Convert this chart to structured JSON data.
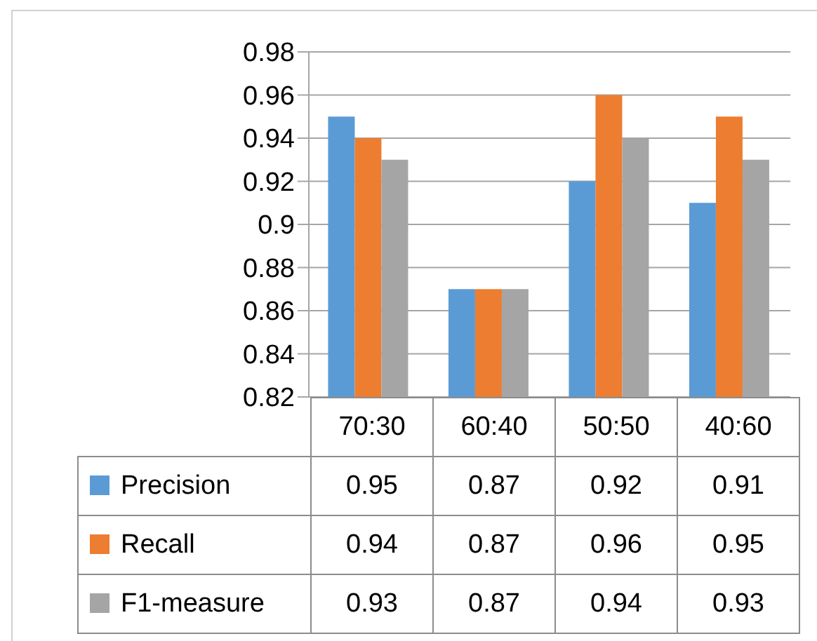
{
  "chart_data": {
    "type": "bar",
    "categories": [
      "70:30",
      "60:40",
      "50:50",
      "40:60"
    ],
    "series": [
      {
        "name": "Precision",
        "color": "#5b9bd5",
        "values": [
          0.95,
          0.87,
          0.92,
          0.91
        ]
      },
      {
        "name": "Recall",
        "color": "#ed7d31",
        "values": [
          0.94,
          0.87,
          0.96,
          0.95
        ]
      },
      {
        "name": "F1-measure",
        "color": "#a5a5a5",
        "values": [
          0.93,
          0.87,
          0.94,
          0.93
        ]
      }
    ],
    "ylim": [
      0.82,
      0.98
    ],
    "yticks": [
      0.82,
      0.84,
      0.86,
      0.88,
      {
        "value": 0.9,
        "label": "0.9"
      },
      0.92,
      0.94,
      0.96,
      0.98
    ],
    "grid": "y",
    "legend": "bottom",
    "data_labels": true
  }
}
